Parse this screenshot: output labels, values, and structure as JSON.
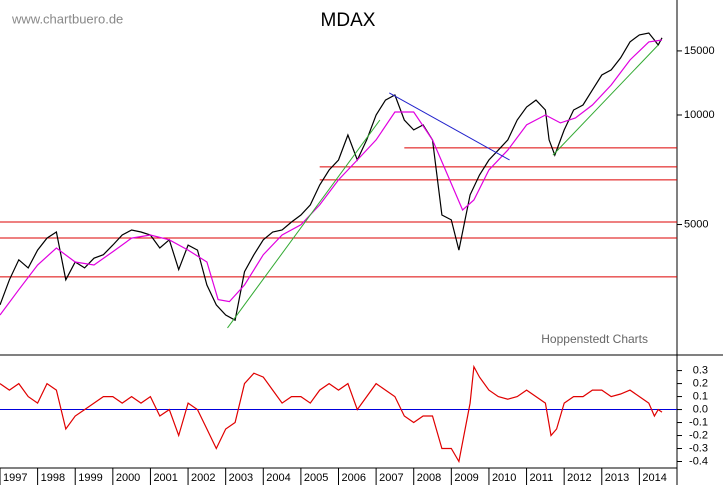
{
  "chart_data": [
    {
      "type": "line",
      "title": "MDAX",
      "watermark": "www.chartbuero.de",
      "source": "Hoppenstedt Charts",
      "log_scale": true,
      "xlim": [
        1997,
        2015
      ],
      "ylim": [
        2190,
        20700
      ],
      "yticks": [
        5000,
        10000,
        15000
      ],
      "series": [
        {
          "color": "#000000",
          "x": [
            1997.0,
            1997.25,
            1997.5,
            1997.75,
            1998.0,
            1998.25,
            1998.5,
            1998.75,
            1999.0,
            1999.25,
            1999.5,
            1999.75,
            2000.0,
            2000.25,
            2000.5,
            2000.75,
            2001.0,
            2001.25,
            2001.5,
            2001.75,
            2002.0,
            2002.25,
            2002.5,
            2002.75,
            2003.0,
            2003.25,
            2003.5,
            2003.75,
            2004.0,
            2004.25,
            2004.5,
            2004.75,
            2005.0,
            2005.25,
            2005.5,
            2005.75,
            2006.0,
            2006.25,
            2006.5,
            2006.75,
            2007.0,
            2007.25,
            2007.5,
            2007.75,
            2008.0,
            2008.25,
            2008.5,
            2008.75,
            2009.0,
            2009.2,
            2009.5,
            2009.75,
            2010.0,
            2010.25,
            2010.5,
            2010.75,
            2011.0,
            2011.25,
            2011.5,
            2011.6,
            2011.75,
            2012.0,
            2012.25,
            2012.5,
            2012.75,
            2013.0,
            2013.25,
            2013.5,
            2013.75,
            2014.0,
            2014.25,
            2014.4,
            2014.5,
            2014.6
          ],
          "values": [
            3006,
            3525,
            4000,
            3800,
            4254,
            4590,
            4770,
            3525,
            3945,
            3800,
            4040,
            4130,
            4390,
            4680,
            4830,
            4770,
            4680,
            4310,
            4540,
            3760,
            4390,
            4254,
            3410,
            3006,
            2820,
            2730,
            3710,
            4130,
            4540,
            4770,
            4830,
            5080,
            5310,
            5660,
            6420,
            7060,
            7520,
            8810,
            7520,
            8540,
            10000,
            10990,
            11350,
            9690,
            9100,
            9390,
            8540,
            5310,
            5150,
            4254,
            6030,
            6840,
            7520,
            8010,
            8540,
            9690,
            10520,
            10990,
            10320,
            8540,
            7760,
            9100,
            10320,
            10650,
            11720,
            12880,
            13300,
            14350,
            15880,
            16600,
            16800,
            16070,
            15570,
            16300
          ]
        },
        {
          "color": "#e000e0",
          "x": [
            1997.0,
            1997.5,
            1998.0,
            1998.5,
            1999.0,
            1999.5,
            2000.0,
            2000.5,
            2001.0,
            2001.5,
            2002.0,
            2002.5,
            2002.8,
            2003.1,
            2003.5,
            2004.0,
            2004.5,
            2005.0,
            2005.5,
            2006.0,
            2006.5,
            2007.0,
            2007.5,
            2008.0,
            2008.5,
            2008.9,
            2009.3,
            2009.6,
            2010.0,
            2010.5,
            2011.0,
            2011.5,
            2011.9,
            2012.3,
            2012.75,
            2013.25,
            2013.75,
            2014.25,
            2014.6
          ],
          "values": [
            2820,
            3310,
            3870,
            4310,
            3945,
            3870,
            4210,
            4590,
            4680,
            4540,
            4254,
            3945,
            3110,
            3070,
            3410,
            4130,
            4680,
            4990,
            5660,
            6630,
            7520,
            8540,
            10190,
            10190,
            8540,
            6840,
            5480,
            5840,
            7060,
            8010,
            9390,
            10000,
            9510,
            9810,
            10650,
            12090,
            14160,
            15880,
            16070
          ]
        }
      ],
      "hlines": [
        {
          "value": 8120,
          "from": 2007.75,
          "color": "#dd0000"
        },
        {
          "value": 7200,
          "from": 2005.5,
          "color": "#dd0000"
        },
        {
          "value": 6630,
          "from": 2005.5,
          "color": "#dd0000"
        },
        {
          "value": 5080,
          "from": 1997.0,
          "color": "#dd0000"
        },
        {
          "value": 4590,
          "from": 1997.0,
          "color": "#dd0000"
        },
        {
          "value": 3590,
          "from": 1997.0,
          "color": "#dd0000"
        }
      ],
      "trendlines": [
        {
          "x": [
            2003.05,
            2007.1
          ],
          "values": [
            2600,
            9690
          ],
          "color": "#33aa33"
        },
        {
          "x": [
            2011.7,
            2014.5
          ],
          "values": [
            7760,
            15570
          ],
          "color": "#33aa33"
        },
        {
          "x": [
            2007.35,
            2010.55
          ],
          "values": [
            11500,
            7520
          ],
          "color": "#2222cc"
        }
      ]
    },
    {
      "type": "line",
      "xlim": [
        1997,
        2015
      ],
      "ylim": [
        -0.45,
        0.42
      ],
      "yticks": [
        0.3,
        0.2,
        0.1,
        {
          "value": 0,
          "label": "0.0"
        },
        -0.1,
        -0.2,
        -0.3,
        -0.4
      ],
      "xticks": [
        1997,
        1998,
        1999,
        2000,
        2001,
        2002,
        2003,
        2004,
        2005,
        2006,
        2007,
        2008,
        2009,
        2010,
        2011,
        2012,
        2013,
        2014
      ],
      "reference_lines": [
        {
          "value": 0,
          "color": "#0000dd"
        }
      ],
      "series": [
        {
          "color": "#e00000",
          "x": [
            1997.0,
            1997.25,
            1997.5,
            1997.75,
            1998.0,
            1998.25,
            1998.5,
            1998.75,
            1999.0,
            1999.25,
            1999.5,
            1999.75,
            2000.0,
            2000.25,
            2000.5,
            2000.75,
            2001.0,
            2001.25,
            2001.5,
            2001.75,
            2002.0,
            2002.25,
            2002.5,
            2002.75,
            2003.0,
            2003.25,
            2003.5,
            2003.75,
            2004.0,
            2004.25,
            2004.5,
            2004.75,
            2005.0,
            2005.25,
            2005.5,
            2005.75,
            2006.0,
            2006.25,
            2006.5,
            2006.75,
            2007.0,
            2007.25,
            2007.5,
            2007.75,
            2008.0,
            2008.25,
            2008.5,
            2008.75,
            2009.0,
            2009.2,
            2009.5,
            2009.6,
            2009.75,
            2010.0,
            2010.25,
            2010.5,
            2010.75,
            2011.0,
            2011.25,
            2011.5,
            2011.65,
            2011.8,
            2012.0,
            2012.25,
            2012.5,
            2012.75,
            2013.0,
            2013.25,
            2013.5,
            2013.75,
            2014.0,
            2014.25,
            2014.4,
            2014.5,
            2014.6
          ],
          "values": [
            0.2,
            0.15,
            0.2,
            0.1,
            0.05,
            0.2,
            0.15,
            -0.15,
            -0.05,
            0.0,
            0.05,
            0.1,
            0.1,
            0.05,
            0.1,
            0.05,
            0.1,
            -0.05,
            0.0,
            -0.2,
            0.05,
            0.0,
            -0.15,
            -0.3,
            -0.15,
            -0.1,
            0.2,
            0.28,
            0.25,
            0.15,
            0.05,
            0.1,
            0.1,
            0.05,
            0.15,
            0.2,
            0.15,
            0.2,
            0.0,
            0.1,
            0.2,
            0.15,
            0.1,
            -0.05,
            -0.1,
            -0.05,
            -0.05,
            -0.3,
            -0.3,
            -0.4,
            0.05,
            0.33,
            0.25,
            0.15,
            0.1,
            0.08,
            0.1,
            0.15,
            0.1,
            0.05,
            -0.2,
            -0.15,
            0.05,
            0.1,
            0.1,
            0.15,
            0.15,
            0.1,
            0.12,
            0.15,
            0.1,
            0.05,
            -0.05,
            0.0,
            -0.02
          ]
        }
      ]
    }
  ]
}
